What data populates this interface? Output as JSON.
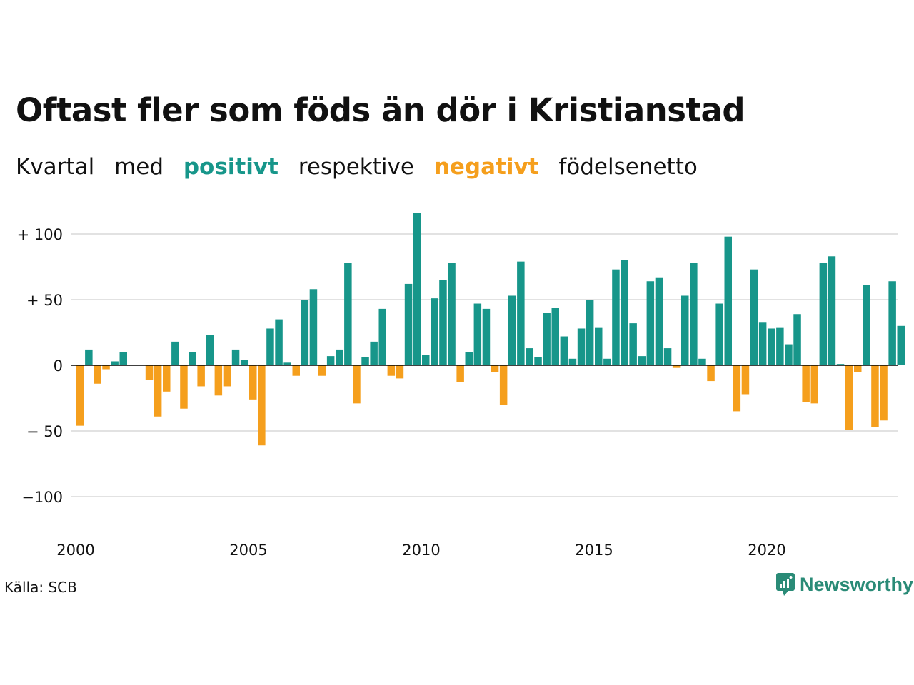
{
  "title": "Oftast fler som föds än dör i Kristianstad",
  "subtitle": {
    "w1": "Kvartal",
    "w2": "med",
    "positive": "positivt",
    "w3": "respektive",
    "negative": "negativt",
    "w4": "födelsenetto"
  },
  "source": "Källa: SCB",
  "brand": {
    "name": "Newsworthy",
    "icon": "newsworthy-logo-icon"
  },
  "colors": {
    "positive": "#17968a",
    "negative": "#f59f1d",
    "grid": "#e2e2e2",
    "zero": "#000000",
    "brand": "#2a8b77"
  },
  "chart_data": {
    "type": "bar",
    "title": "",
    "xlabel": "",
    "ylabel": "",
    "x_ticks": [
      "2000",
      "2005",
      "2010",
      "2015",
      "2020"
    ],
    "y_ticks": [
      {
        "value": 100,
        "label": "+ 100"
      },
      {
        "value": 50,
        "label": "+  50"
      },
      {
        "value": 0,
        "label": "0"
      },
      {
        "value": -50,
        "label": "− 50"
      },
      {
        "value": -100,
        "label": "−100"
      }
    ],
    "ylim": [
      -115,
      115
    ],
    "grid": true,
    "legend": "none",
    "categories": [
      "2000 Q1",
      "2000 Q2",
      "2000 Q3",
      "2000 Q4",
      "2001 Q1",
      "2001 Q2",
      "2001 Q3",
      "2001 Q4",
      "2002 Q1",
      "2002 Q2",
      "2002 Q3",
      "2002 Q4",
      "2003 Q1",
      "2003 Q2",
      "2003 Q3",
      "2003 Q4",
      "2004 Q1",
      "2004 Q2",
      "2004 Q3",
      "2004 Q4",
      "2005 Q1",
      "2005 Q2",
      "2005 Q3",
      "2005 Q4",
      "2006 Q1",
      "2006 Q2",
      "2006 Q3",
      "2006 Q4",
      "2007 Q1",
      "2007 Q2",
      "2007 Q3",
      "2007 Q4",
      "2008 Q1",
      "2008 Q2",
      "2008 Q3",
      "2008 Q4",
      "2009 Q1",
      "2009 Q2",
      "2009 Q3",
      "2009 Q4",
      "2010 Q1",
      "2010 Q2",
      "2010 Q3",
      "2010 Q4",
      "2011 Q1",
      "2011 Q2",
      "2011 Q3",
      "2011 Q4",
      "2012 Q1",
      "2012 Q2",
      "2012 Q3",
      "2012 Q4",
      "2013 Q1",
      "2013 Q2",
      "2013 Q3",
      "2013 Q4",
      "2014 Q1",
      "2014 Q2",
      "2014 Q3",
      "2014 Q4",
      "2015 Q1",
      "2015 Q2",
      "2015 Q3",
      "2015 Q4",
      "2016 Q1",
      "2016 Q2",
      "2016 Q3",
      "2016 Q4",
      "2017 Q1",
      "2017 Q2",
      "2017 Q3",
      "2017 Q4",
      "2018 Q1",
      "2018 Q2",
      "2018 Q3",
      "2018 Q4",
      "2019 Q1",
      "2019 Q2",
      "2019 Q3",
      "2019 Q4",
      "2020 Q1",
      "2020 Q2",
      "2020 Q3",
      "2020 Q4",
      "2021 Q1",
      "2021 Q2",
      "2021 Q3",
      "2021 Q4",
      "2022 Q1",
      "2022 Q2",
      "2022 Q3",
      "2022 Q4",
      "2023 Q1",
      "2023 Q2",
      "2023 Q3",
      "2023 Q4"
    ],
    "values": [
      -46,
      12,
      -14,
      -3,
      3,
      10,
      0,
      0,
      -11,
      -39,
      -20,
      18,
      -33,
      10,
      -16,
      23,
      -23,
      -16,
      12,
      4,
      -26,
      -61,
      28,
      35,
      2,
      -8,
      50,
      58,
      -8,
      7,
      12,
      78,
      -29,
      6,
      18,
      43,
      -8,
      -10,
      62,
      116,
      8,
      51,
      65,
      78,
      -13,
      10,
      47,
      43,
      -5,
      -30,
      53,
      79,
      13,
      6,
      40,
      44,
      22,
      5,
      28,
      50,
      29,
      5,
      73,
      80,
      32,
      7,
      64,
      67,
      13,
      -2,
      53,
      78,
      5,
      -12,
      47,
      98,
      -35,
      -22,
      73,
      33,
      28,
      29,
      16,
      39,
      -28,
      -29,
      78,
      83,
      1,
      -49,
      -5,
      61,
      -47,
      -42,
      64,
      30
    ]
  }
}
